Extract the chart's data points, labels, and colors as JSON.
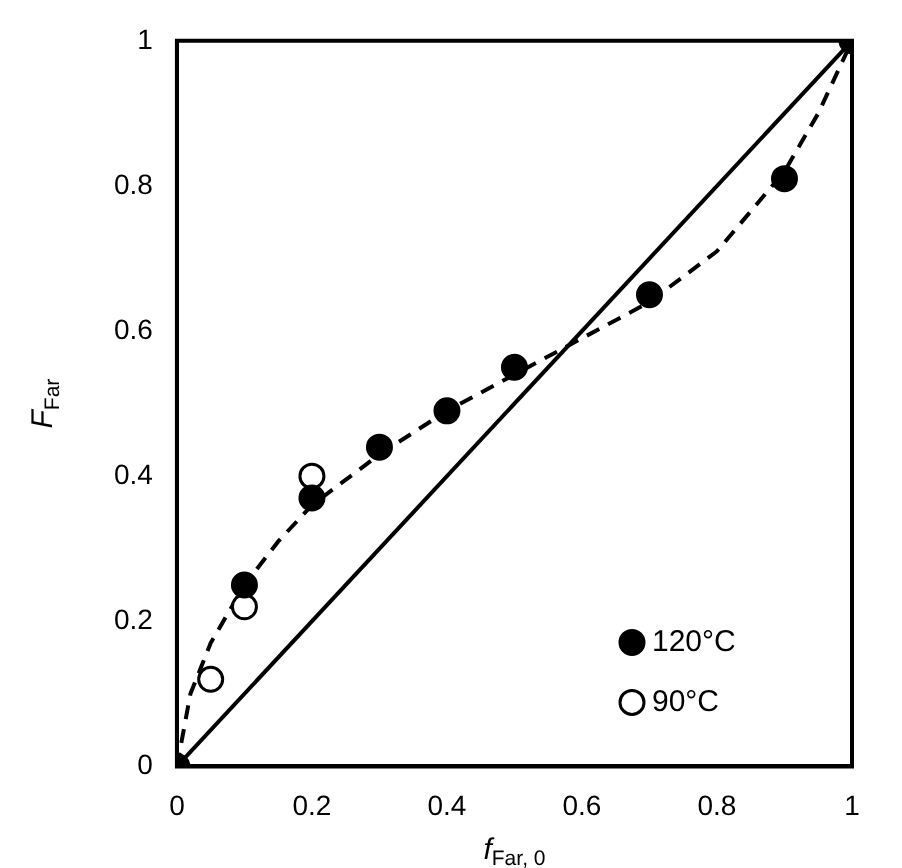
{
  "chart_data": {
    "type": "scatter",
    "xlabel": "f$_{Far, 0}$",
    "ylabel": "F$_{Far}$",
    "xlim": [
      0,
      1
    ],
    "ylim": [
      0,
      1
    ],
    "xticks": [
      0,
      0.2,
      0.4,
      0.6,
      0.8,
      1
    ],
    "yticks": [
      0,
      0.2,
      0.4,
      0.6,
      0.8,
      1
    ],
    "grid": false,
    "legend": "bottom right",
    "series": [
      {
        "name": "120°C",
        "color": "#000000",
        "marker": "circle",
        "x": [
          0,
          0.1,
          0.2,
          0.3,
          0.4,
          0.5,
          0.7,
          0.9,
          1
        ],
        "values": [
          0,
          0.25,
          0.37,
          0.44,
          0.49,
          0.55,
          0.65,
          0.81,
          1
        ]
      },
      {
        "name": "90°C",
        "color": "#ffffff",
        "marker": "circle",
        "x": [
          0.05,
          0.1,
          0.2
        ],
        "values": [
          0.12,
          0.22,
          0.4
        ]
      },
      {
        "type": "line",
        "color": "#000000",
        "marker": "none",
        "line_style": "solid",
        "x": [
          0,
          1
        ],
        "values": [
          0,
          1
        ]
      },
      {
        "type": "line",
        "color": "#000000",
        "marker": "none",
        "line_style": "dashed",
        "x": [
          0,
          0.02,
          0.05,
          0.1,
          0.15,
          0.2,
          0.3,
          0.4,
          0.5,
          0.6,
          0.7,
          0.8,
          0.9,
          0.95,
          1
        ],
        "values": [
          0,
          0.1,
          0.17,
          0.25,
          0.31,
          0.36,
          0.43,
          0.49,
          0.54,
          0.59,
          0.64,
          0.71,
          0.82,
          0.9,
          1
        ]
      }
    ]
  }
}
